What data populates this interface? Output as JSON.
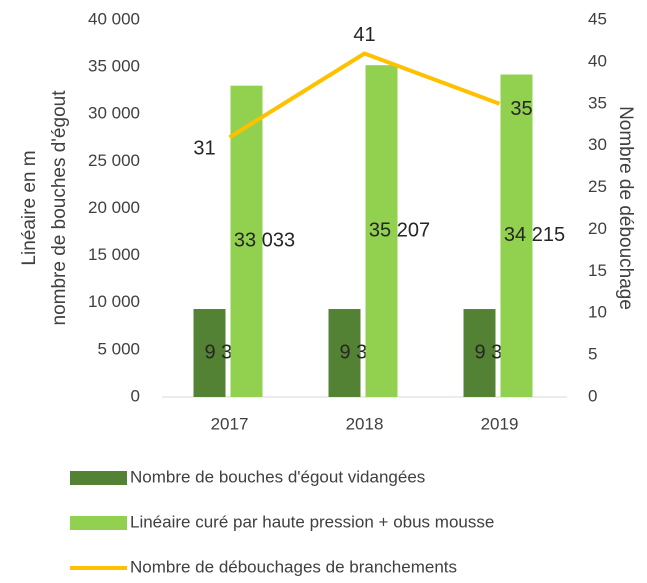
{
  "chart_data": {
    "type": "bar_line",
    "ylabel": [
      "Linéaire en m",
      "nombre de bouches d'égout"
    ],
    "y2label": "Nombre de débouchage",
    "categories": [
      "2017",
      "2018",
      "2019"
    ],
    "series": [
      {
        "name": "Nombre de bouches d'égout vidangées",
        "type": "bar",
        "color": "#548235",
        "values": [
          9335,
          9334,
          9332
        ],
        "value_labels": [
          "9 335",
          "9 334",
          "9 332"
        ]
      },
      {
        "name": "Linéaire curé par haute pression + obus mousse",
        "type": "bar",
        "color": "#92d050",
        "values": [
          33033,
          35207,
          34215
        ],
        "value_labels": [
          "33 033",
          "35 207",
          "34 215"
        ]
      },
      {
        "name": "Nombre de débouchages de branchements",
        "type": "line",
        "axis": "y2",
        "color": "#ffc000",
        "values": [
          31,
          41,
          35
        ]
      }
    ],
    "ylim": [
      0,
      40000
    ],
    "yticks": [
      0,
      {
        "value": 5000,
        "label": "5 000"
      },
      {
        "value": 10000,
        "label": "10 000"
      },
      {
        "value": 15000,
        "label": "15 000"
      },
      {
        "value": 20000,
        "label": "20 000"
      },
      {
        "value": 25000,
        "label": "25 000"
      },
      {
        "value": 30000,
        "label": "30 000"
      },
      {
        "value": 35000,
        "label": "35 000"
      },
      {
        "value": 40000,
        "label": "40 000"
      }
    ],
    "y2lim": [
      0,
      45
    ],
    "y2ticks": [
      0,
      5,
      10,
      15,
      20,
      25,
      30,
      35,
      40,
      45
    ],
    "legend": "bottom"
  }
}
